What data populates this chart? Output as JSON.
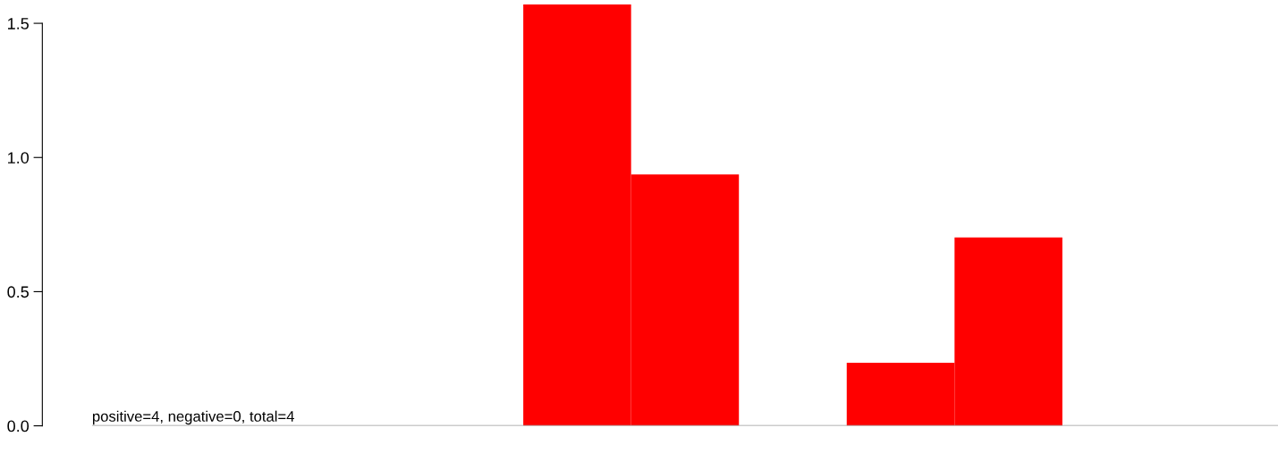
{
  "chart_data": {
    "type": "bar",
    "categories": [
      null,
      null,
      null,
      null,
      null,
      null,
      null,
      null,
      null,
      null,
      null
    ],
    "values": [
      0,
      0,
      0,
      0,
      1.57,
      0.937,
      0,
      0.235,
      0.702,
      0,
      0
    ],
    "color": "#ff0000",
    "ylim": [
      0,
      1.57
    ],
    "yticks": [
      {
        "value": 0,
        "label": "0.0"
      },
      {
        "value": 0.5,
        "label": "0.5"
      },
      {
        "value": 1,
        "label": "1.0"
      },
      {
        "value": 1.5,
        "label": "1.5"
      }
    ],
    "tick_labels": "y",
    "grid": false,
    "ref_lines": [
      {
        "axis": "y",
        "value": 0,
        "color": "#999999"
      }
    ],
    "annotations": [
      "positive=4, negative=0, total=4"
    ]
  }
}
